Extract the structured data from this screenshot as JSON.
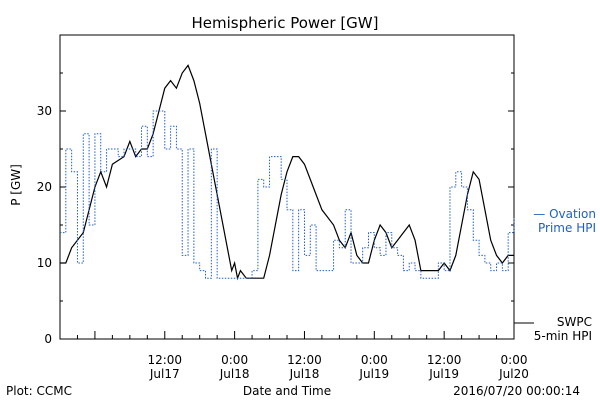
{
  "chart_data": {
    "type": "line",
    "title": "Hemispheric Power [GW]",
    "ylabel": "P [GW]",
    "xlabel": "Date and Time",
    "ylim": [
      0,
      40
    ],
    "yticks": [
      0,
      10,
      20,
      30
    ],
    "xlim": [
      "2016-07-16 18:00",
      "2016-07-20 00:00"
    ],
    "xticks": [
      {
        "time": "2016-07-17 12:00",
        "line1": "12:00",
        "line2": "Jul17"
      },
      {
        "time": "2016-07-18 00:00",
        "line1": "0:00",
        "line2": "Jul18"
      },
      {
        "time": "2016-07-18 12:00",
        "line1": "12:00",
        "line2": "Jul18"
      },
      {
        "time": "2016-07-19 00:00",
        "line1": "0:00",
        "line2": "Jul19"
      },
      {
        "time": "2016-07-19 12:00",
        "line1": "12:00",
        "line2": "Jul19"
      },
      {
        "time": "2016-07-20 00:00",
        "line1": "0:00",
        "line2": "Jul20"
      }
    ],
    "grid": false,
    "legend_placement": "right",
    "series": [
      {
        "name_lines": [
          "SWPC",
          "5-min HPI"
        ],
        "color": "#000000",
        "style": "solid",
        "points": [
          [
            "2016-07-16 18:00",
            10
          ],
          [
            "2016-07-16 19:00",
            10
          ],
          [
            "2016-07-16 20:00",
            12
          ],
          [
            "2016-07-16 22:00",
            14
          ],
          [
            "2016-07-17 00:00",
            20
          ],
          [
            "2016-07-17 01:00",
            22
          ],
          [
            "2016-07-17 02:00",
            20
          ],
          [
            "2016-07-17 03:00",
            23
          ],
          [
            "2016-07-17 05:00",
            24
          ],
          [
            "2016-07-17 06:00",
            26
          ],
          [
            "2016-07-17 07:00",
            24
          ],
          [
            "2016-07-17 08:00",
            25
          ],
          [
            "2016-07-17 09:00",
            25
          ],
          [
            "2016-07-17 10:00",
            27
          ],
          [
            "2016-07-17 11:00",
            30
          ],
          [
            "2016-07-17 12:00",
            33
          ],
          [
            "2016-07-17 13:00",
            34
          ],
          [
            "2016-07-17 14:00",
            33
          ],
          [
            "2016-07-17 15:00",
            35
          ],
          [
            "2016-07-17 16:00",
            36
          ],
          [
            "2016-07-17 17:00",
            34
          ],
          [
            "2016-07-17 18:00",
            31
          ],
          [
            "2016-07-17 19:00",
            27
          ],
          [
            "2016-07-17 20:00",
            23
          ],
          [
            "2016-07-17 21:00",
            19
          ],
          [
            "2016-07-17 22:00",
            15
          ],
          [
            "2016-07-17 23:00",
            11
          ],
          [
            "2016-07-17 23:30",
            9
          ],
          [
            "2016-07-18 00:00",
            10
          ],
          [
            "2016-07-18 00:30",
            8
          ],
          [
            "2016-07-18 01:00",
            9
          ],
          [
            "2016-07-18 02:00",
            8
          ],
          [
            "2016-07-18 04:00",
            8
          ],
          [
            "2016-07-18 05:00",
            8
          ],
          [
            "2016-07-18 06:00",
            11
          ],
          [
            "2016-07-18 07:00",
            15
          ],
          [
            "2016-07-18 08:00",
            19
          ],
          [
            "2016-07-18 09:00",
            22
          ],
          [
            "2016-07-18 10:00",
            24
          ],
          [
            "2016-07-18 11:00",
            24
          ],
          [
            "2016-07-18 12:00",
            23
          ],
          [
            "2016-07-18 13:00",
            21
          ],
          [
            "2016-07-18 14:00",
            19
          ],
          [
            "2016-07-18 15:00",
            17
          ],
          [
            "2016-07-18 16:00",
            16
          ],
          [
            "2016-07-18 17:00",
            15
          ],
          [
            "2016-07-18 18:00",
            13
          ],
          [
            "2016-07-18 19:00",
            12
          ],
          [
            "2016-07-18 20:00",
            14
          ],
          [
            "2016-07-18 21:00",
            11
          ],
          [
            "2016-07-18 22:00",
            10
          ],
          [
            "2016-07-18 23:00",
            10
          ],
          [
            "2016-07-19 00:00",
            13
          ],
          [
            "2016-07-19 01:00",
            15
          ],
          [
            "2016-07-19 02:00",
            14
          ],
          [
            "2016-07-19 03:00",
            12
          ],
          [
            "2016-07-19 04:00",
            13
          ],
          [
            "2016-07-19 05:00",
            14
          ],
          [
            "2016-07-19 06:00",
            15
          ],
          [
            "2016-07-19 07:00",
            13
          ],
          [
            "2016-07-19 08:00",
            9
          ],
          [
            "2016-07-19 09:00",
            9
          ],
          [
            "2016-07-19 10:00",
            9
          ],
          [
            "2016-07-19 11:00",
            9
          ],
          [
            "2016-07-19 12:00",
            10
          ],
          [
            "2016-07-19 13:00",
            9
          ],
          [
            "2016-07-19 14:00",
            11
          ],
          [
            "2016-07-19 15:00",
            15
          ],
          [
            "2016-07-19 16:00",
            19
          ],
          [
            "2016-07-19 17:00",
            22
          ],
          [
            "2016-07-19 18:00",
            21
          ],
          [
            "2016-07-19 19:00",
            17
          ],
          [
            "2016-07-19 20:00",
            13
          ],
          [
            "2016-07-19 21:00",
            11
          ],
          [
            "2016-07-19 22:00",
            10
          ],
          [
            "2016-07-19 23:00",
            11
          ],
          [
            "2016-07-20 00:00",
            11
          ]
        ]
      },
      {
        "name_lines": [
          "— Ovation",
          "Prime HPI"
        ],
        "color": "#1f5fc6",
        "style": "dotted-step",
        "points": [
          [
            "2016-07-16 18:00",
            14
          ],
          [
            "2016-07-16 19:00",
            25
          ],
          [
            "2016-07-16 20:00",
            22
          ],
          [
            "2016-07-16 21:00",
            10
          ],
          [
            "2016-07-16 22:00",
            27
          ],
          [
            "2016-07-16 23:00",
            15
          ],
          [
            "2016-07-17 00:00",
            27
          ],
          [
            "2016-07-17 01:00",
            22
          ],
          [
            "2016-07-17 02:00",
            25
          ],
          [
            "2016-07-17 04:00",
            24
          ],
          [
            "2016-07-17 05:00",
            25
          ],
          [
            "2016-07-17 07:00",
            24
          ],
          [
            "2016-07-17 08:00",
            28
          ],
          [
            "2016-07-17 09:00",
            24
          ],
          [
            "2016-07-17 10:00",
            30
          ],
          [
            "2016-07-17 12:00",
            25
          ],
          [
            "2016-07-17 13:00",
            28
          ],
          [
            "2016-07-17 14:00",
            25
          ],
          [
            "2016-07-17 15:00",
            11
          ],
          [
            "2016-07-17 16:00",
            25
          ],
          [
            "2016-07-17 17:00",
            10
          ],
          [
            "2016-07-17 18:00",
            9
          ],
          [
            "2016-07-17 19:00",
            8
          ],
          [
            "2016-07-17 20:00",
            25
          ],
          [
            "2016-07-17 21:00",
            8
          ],
          [
            "2016-07-17 22:00",
            8
          ],
          [
            "2016-07-18 00:00",
            8
          ],
          [
            "2016-07-18 03:00",
            9
          ],
          [
            "2016-07-18 04:00",
            21
          ],
          [
            "2016-07-18 05:00",
            20
          ],
          [
            "2016-07-18 06:00",
            24
          ],
          [
            "2016-07-18 07:00",
            24
          ],
          [
            "2016-07-18 08:00",
            21
          ],
          [
            "2016-07-18 09:00",
            17
          ],
          [
            "2016-07-18 10:00",
            9
          ],
          [
            "2016-07-18 11:00",
            17
          ],
          [
            "2016-07-18 12:00",
            11
          ],
          [
            "2016-07-18 13:00",
            15
          ],
          [
            "2016-07-18 14:00",
            9
          ],
          [
            "2016-07-18 16:00",
            9
          ],
          [
            "2016-07-18 17:00",
            13
          ],
          [
            "2016-07-18 18:00",
            12
          ],
          [
            "2016-07-18 19:00",
            17
          ],
          [
            "2016-07-18 20:00",
            10
          ],
          [
            "2016-07-18 21:00",
            10
          ],
          [
            "2016-07-18 22:00",
            12
          ],
          [
            "2016-07-18 23:00",
            14
          ],
          [
            "2016-07-19 00:00",
            12
          ],
          [
            "2016-07-19 01:00",
            11
          ],
          [
            "2016-07-19 02:00",
            14
          ],
          [
            "2016-07-19 03:00",
            12
          ],
          [
            "2016-07-19 04:00",
            11
          ],
          [
            "2016-07-19 05:00",
            9
          ],
          [
            "2016-07-19 06:00",
            10
          ],
          [
            "2016-07-19 07:00",
            9
          ],
          [
            "2016-07-19 08:00",
            8
          ],
          [
            "2016-07-19 10:00",
            8
          ],
          [
            "2016-07-19 11:00",
            10
          ],
          [
            "2016-07-19 12:00",
            9
          ],
          [
            "2016-07-19 13:00",
            20
          ],
          [
            "2016-07-19 14:00",
            22
          ],
          [
            "2016-07-19 15:00",
            20
          ],
          [
            "2016-07-19 16:00",
            17
          ],
          [
            "2016-07-19 17:00",
            13
          ],
          [
            "2016-07-19 18:00",
            11
          ],
          [
            "2016-07-19 19:00",
            10
          ],
          [
            "2016-07-19 20:00",
            9
          ],
          [
            "2016-07-19 21:00",
            10
          ],
          [
            "2016-07-19 22:00",
            9
          ],
          [
            "2016-07-19 23:00",
            14
          ],
          [
            "2016-07-20 00:00",
            16
          ]
        ]
      }
    ]
  },
  "footer": {
    "left": "Plot: CCMC",
    "center": "Date and Time",
    "right": "2016/07/20 00:00:14"
  }
}
